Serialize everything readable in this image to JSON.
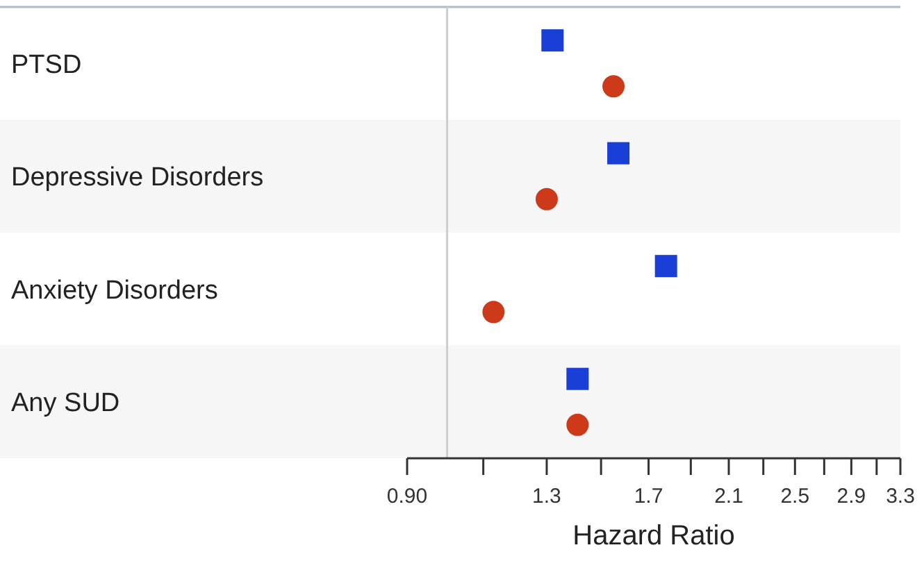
{
  "chart_data": {
    "type": "scatter",
    "orientation": "horizontal",
    "xlabel": "Hazard Ratio",
    "categories": [
      "PTSD",
      "Depressive Disorders",
      "Anxiety Disorders",
      "Any SUD"
    ],
    "series": [
      {
        "color": "#1a3fd6",
        "marker": "square",
        "values": [
          1.32,
          1.57,
          1.78,
          1.41
        ]
      },
      {
        "color": "#cc3a1a",
        "marker": "circle",
        "values": [
          1.55,
          1.3,
          1.13,
          1.41
        ]
      }
    ],
    "log": "x",
    "xlim": [
      0.9,
      3.3
    ],
    "xticks": [
      {
        "value": 0.9,
        "label": "0.90"
      },
      {
        "value": 1.1,
        "label": null
      },
      1.3,
      {
        "value": 1.5,
        "label": null
      },
      1.7,
      {
        "value": 1.9,
        "label": null
      },
      2.1,
      {
        "value": 2.3,
        "label": null
      },
      2.5,
      {
        "value": 2.7,
        "label": null
      },
      2.9,
      {
        "value": 3.1,
        "label": null
      },
      3.3
    ],
    "ref_lines": [
      {
        "axis": "x",
        "value": 1,
        "color": "#c8ced3"
      }
    ],
    "grid": false
  }
}
